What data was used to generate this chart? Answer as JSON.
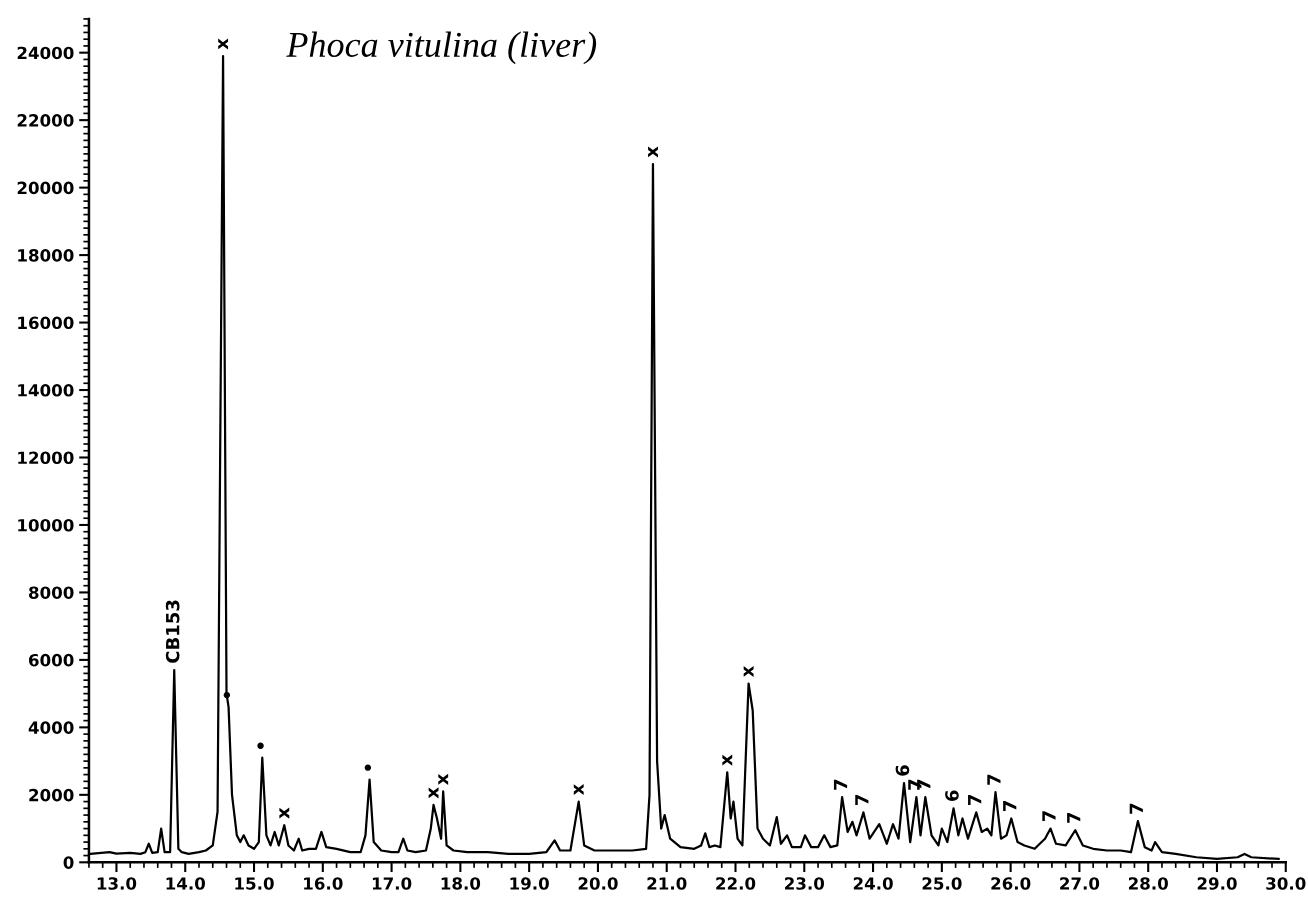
{
  "chart_data": {
    "type": "line",
    "title": "Phoca vitulina (liver)",
    "x": [
      12.62,
      12.9,
      13.0,
      13.2,
      13.35,
      13.42,
      13.47,
      13.52,
      13.6,
      13.65,
      13.7,
      13.78,
      13.84,
      13.9,
      13.95,
      14.05,
      14.2,
      14.3,
      14.4,
      14.47,
      14.55,
      14.6,
      14.63,
      14.68,
      14.75,
      14.8,
      14.85,
      14.92,
      15.0,
      15.07,
      15.12,
      15.18,
      15.24,
      15.3,
      15.36,
      15.44,
      15.5,
      15.58,
      15.65,
      15.7,
      15.8,
      15.9,
      15.98,
      16.05,
      16.2,
      16.4,
      16.55,
      16.62,
      16.68,
      16.74,
      16.85,
      17.0,
      17.1,
      17.17,
      17.23,
      17.35,
      17.5,
      17.57,
      17.61,
      17.66,
      17.72,
      17.75,
      17.8,
      17.9,
      18.1,
      18.4,
      18.7,
      19.0,
      19.25,
      19.37,
      19.45,
      19.6,
      19.72,
      19.8,
      19.95,
      20.2,
      20.5,
      20.7,
      20.75,
      20.8,
      20.86,
      20.92,
      20.97,
      21.05,
      21.2,
      21.4,
      21.5,
      21.56,
      21.62,
      21.7,
      21.78,
      21.88,
      21.93,
      21.97,
      22.03,
      22.1,
      22.19,
      22.25,
      22.32,
      22.4,
      22.5,
      22.6,
      22.66,
      22.75,
      22.82,
      22.95,
      23.01,
      23.1,
      23.2,
      23.29,
      23.38,
      23.48,
      23.55,
      23.63,
      23.7,
      23.76,
      23.86,
      23.95,
      24.09,
      24.2,
      24.29,
      24.37,
      24.45,
      24.54,
      24.63,
      24.69,
      24.76,
      24.85,
      24.95,
      25.0,
      25.08,
      25.17,
      25.24,
      25.3,
      25.38,
      25.5,
      25.58,
      25.66,
      25.72,
      25.78,
      25.86,
      25.94,
      26.01,
      26.1,
      26.2,
      26.35,
      26.45,
      26.5,
      26.58,
      26.66,
      26.8,
      26.94,
      27.05,
      27.2,
      27.4,
      27.6,
      27.75,
      27.85,
      27.95,
      28.05,
      28.1,
      28.2,
      28.4,
      28.7,
      29.0,
      29.3,
      29.4,
      29.5,
      29.9
    ],
    "series": [
      {
        "color": "#000000",
        "values": [
          250,
          300,
          260,
          280,
          250,
          300,
          550,
          280,
          300,
          1000,
          300,
          300,
          5700,
          400,
          300,
          250,
          300,
          350,
          500,
          1500,
          23900,
          5000,
          4600,
          2000,
          800,
          600,
          800,
          500,
          400,
          600,
          3100,
          800,
          500,
          900,
          500,
          1100,
          500,
          350,
          700,
          350,
          400,
          400,
          900,
          450,
          400,
          300,
          300,
          800,
          2450,
          600,
          350,
          300,
          300,
          700,
          350,
          300,
          350,
          1000,
          1700,
          1300,
          700,
          2100,
          500,
          350,
          300,
          300,
          250,
          250,
          300,
          650,
          350,
          350,
          1800,
          500,
          350,
          350,
          350,
          400,
          2000,
          20700,
          3000,
          1000,
          1400,
          700,
          450,
          400,
          500,
          860,
          450,
          500,
          450,
          2670,
          1300,
          1800,
          700,
          500,
          5300,
          4500,
          1000,
          700,
          500,
          1340,
          550,
          800,
          450,
          450,
          800,
          450,
          450,
          800,
          450,
          500,
          1930,
          900,
          1200,
          800,
          1480,
          700,
          1130,
          550,
          1130,
          700,
          2350,
          600,
          1930,
          800,
          1930,
          800,
          500,
          1000,
          600,
          1600,
          800,
          1300,
          700,
          1480,
          900,
          1000,
          800,
          2080,
          700,
          800,
          1300,
          600,
          500,
          400,
          600,
          700,
          1000,
          550,
          500,
          950,
          500,
          400,
          350,
          350,
          300,
          1220,
          450,
          350,
          600,
          300,
          250,
          150,
          100,
          150,
          250,
          150,
          100
        ]
      }
    ],
    "xlim": [
      12.6,
      30.0
    ],
    "ylim": [
      0,
      25000
    ],
    "xticks": [
      {
        "value": 13,
        "label": "13.0"
      },
      {
        "value": 14,
        "label": "14.0"
      },
      {
        "value": 15,
        "label": "15.0"
      },
      {
        "value": 16,
        "label": "16.0"
      },
      {
        "value": 17,
        "label": "17.0"
      },
      {
        "value": 18,
        "label": "18.0"
      },
      {
        "value": 19,
        "label": "19.0"
      },
      {
        "value": 20,
        "label": "20.0"
      },
      {
        "value": 21,
        "label": "21.0"
      },
      {
        "value": 22,
        "label": "22.0"
      },
      {
        "value": 23,
        "label": "23.0"
      },
      {
        "value": 24,
        "label": "24.0"
      },
      {
        "value": 25,
        "label": "25.0"
      },
      {
        "value": 26,
        "label": "26.0"
      },
      {
        "value": 27,
        "label": "27.0"
      },
      {
        "value": 28,
        "label": "28.0"
      },
      {
        "value": 29,
        "label": "29.0"
      },
      {
        "value": 30,
        "label": "30.0"
      }
    ],
    "yticks": [
      0,
      2000,
      4000,
      6000,
      8000,
      10000,
      12000,
      14000,
      16000,
      18000,
      20000,
      22000,
      24000
    ],
    "grid": false,
    "legend": false,
    "marker": "none",
    "line_style": "solid",
    "annotations": [
      {
        "text": "CB153",
        "x": 13.84,
        "y": 5700
      },
      {
        "text": "x",
        "x": 14.55,
        "y": 23900
      },
      {
        "text": "•",
        "x": 14.63,
        "y": 4600
      },
      {
        "text": "•",
        "x": 15.12,
        "y": 3100
      },
      {
        "text": "x",
        "x": 15.44,
        "y": 1100
      },
      {
        "text": "•",
        "x": 16.68,
        "y": 2450
      },
      {
        "text": "x",
        "x": 17.61,
        "y": 1700
      },
      {
        "text": "x",
        "x": 17.75,
        "y": 2100
      },
      {
        "text": "x",
        "x": 19.72,
        "y": 1800
      },
      {
        "text": "x",
        "x": 20.8,
        "y": 20700
      },
      {
        "text": "x",
        "x": 21.88,
        "y": 2670
      },
      {
        "text": "x",
        "x": 22.19,
        "y": 5300
      },
      {
        "text": "7",
        "x": 23.55,
        "y": 1930
      },
      {
        "text": "7",
        "x": 23.86,
        "y": 1480
      },
      {
        "text": "6",
        "x": 24.45,
        "y": 2350
      },
      {
        "text": "7",
        "x": 24.63,
        "y": 1930
      },
      {
        "text": "7",
        "x": 24.76,
        "y": 1930
      },
      {
        "text": "6",
        "x": 25.17,
        "y": 1600
      },
      {
        "text": "7",
        "x": 25.5,
        "y": 1480
      },
      {
        "text": "7",
        "x": 25.78,
        "y": 2080
      },
      {
        "text": "7",
        "x": 26.01,
        "y": 1300
      },
      {
        "text": "7",
        "x": 26.58,
        "y": 1000
      },
      {
        "text": "7",
        "x": 26.94,
        "y": 950
      },
      {
        "text": "7",
        "x": 27.85,
        "y": 1220
      }
    ]
  }
}
